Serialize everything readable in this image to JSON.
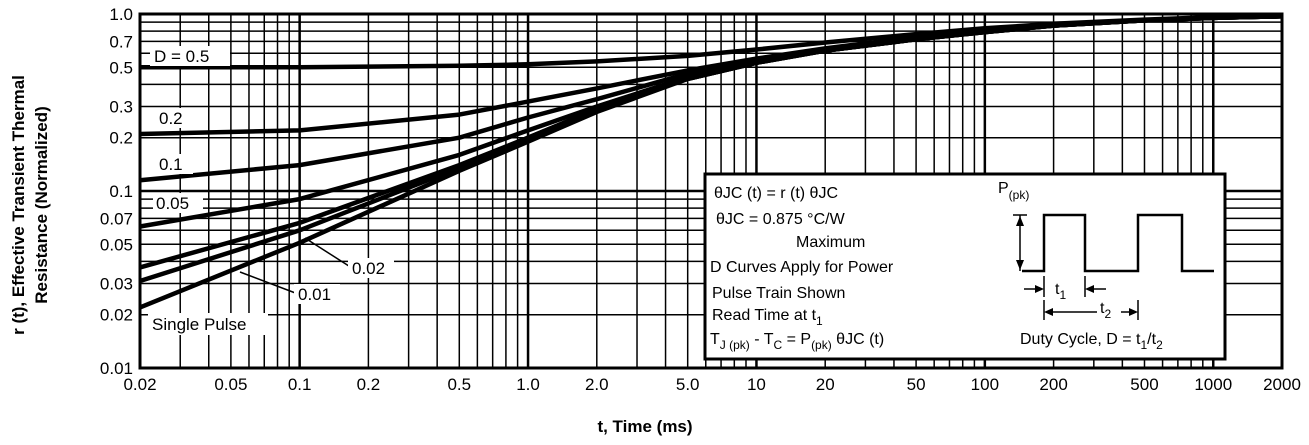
{
  "chart_data": {
    "type": "line",
    "title": "",
    "xlabel": "t, Time (ms)",
    "ylabel_line1": "r (t), Effective Transient Thermal",
    "ylabel_line2": "Resistance (Normalized)",
    "x_scale": "log",
    "y_scale": "log",
    "xlim": [
      0.02,
      2000
    ],
    "ylim": [
      0.01,
      1.0
    ],
    "grid": true,
    "x_ticks": [
      "0.02",
      "0.05",
      "0.1",
      "0.2",
      "0.5",
      "1.0",
      "2.0",
      "5.0",
      "10",
      "20",
      "50",
      "100",
      "200",
      "500",
      "1000",
      "2000"
    ],
    "x_tick_values": [
      0.02,
      0.05,
      0.1,
      0.2,
      0.5,
      1,
      2,
      5,
      10,
      20,
      50,
      100,
      200,
      500,
      1000,
      2000
    ],
    "y_ticks": [
      "1.0",
      "0.7",
      "0.5",
      "0.3",
      "0.2",
      "0.1",
      "0.07",
      "0.05",
      "0.03",
      "0.02",
      "0.01"
    ],
    "y_tick_values": [
      1.0,
      0.7,
      0.5,
      0.3,
      0.2,
      0.1,
      0.07,
      0.05,
      0.03,
      0.02,
      0.01
    ],
    "series": [
      {
        "name": "D = 0.5",
        "x": [
          0.02,
          0.1,
          0.5,
          1,
          2,
          5,
          10,
          20,
          50,
          100,
          200,
          500,
          1000,
          2000
        ],
        "y": [
          0.5,
          0.5,
          0.51,
          0.52,
          0.54,
          0.58,
          0.63,
          0.69,
          0.77,
          0.83,
          0.88,
          0.93,
          0.96,
          0.97
        ]
      },
      {
        "name": "0.2",
        "x": [
          0.02,
          0.1,
          0.5,
          1,
          2,
          5,
          10,
          20,
          50,
          100,
          200,
          500,
          1000,
          2000
        ],
        "y": [
          0.21,
          0.22,
          0.27,
          0.32,
          0.38,
          0.48,
          0.56,
          0.64,
          0.74,
          0.81,
          0.87,
          0.92,
          0.95,
          0.97
        ]
      },
      {
        "name": "0.1",
        "x": [
          0.02,
          0.1,
          0.5,
          1,
          2,
          5,
          10,
          20,
          50,
          100,
          200,
          500,
          1000,
          2000
        ],
        "y": [
          0.115,
          0.14,
          0.2,
          0.26,
          0.33,
          0.46,
          0.55,
          0.63,
          0.73,
          0.8,
          0.86,
          0.92,
          0.95,
          0.97
        ]
      },
      {
        "name": "0.05",
        "x": [
          0.02,
          0.1,
          0.5,
          1,
          2,
          5,
          10,
          20,
          50,
          100,
          200,
          500,
          1000,
          2000
        ],
        "y": [
          0.063,
          0.09,
          0.16,
          0.22,
          0.3,
          0.44,
          0.54,
          0.62,
          0.72,
          0.79,
          0.86,
          0.92,
          0.95,
          0.97
        ]
      },
      {
        "name": "0.02",
        "x": [
          0.02,
          0.1,
          0.5,
          1,
          2,
          5,
          10,
          20,
          50,
          100,
          200,
          500,
          1000,
          2000
        ],
        "y": [
          0.037,
          0.066,
          0.14,
          0.2,
          0.29,
          0.43,
          0.53,
          0.62,
          0.72,
          0.79,
          0.86,
          0.92,
          0.95,
          0.97
        ]
      },
      {
        "name": "0.01",
        "x": [
          0.02,
          0.1,
          0.5,
          1,
          2,
          5,
          10,
          20,
          50,
          100,
          200,
          500,
          1000,
          2000
        ],
        "y": [
          0.031,
          0.06,
          0.135,
          0.2,
          0.29,
          0.43,
          0.53,
          0.62,
          0.72,
          0.79,
          0.86,
          0.92,
          0.95,
          0.97
        ]
      },
      {
        "name": "Single Pulse",
        "x": [
          0.02,
          0.1,
          0.5,
          1,
          2,
          5,
          10,
          20,
          50,
          100,
          200,
          500,
          1000,
          2000
        ],
        "y": [
          0.022,
          0.051,
          0.13,
          0.19,
          0.28,
          0.43,
          0.53,
          0.62,
          0.72,
          0.79,
          0.86,
          0.92,
          0.95,
          0.97
        ]
      }
    ],
    "annotation": {
      "eq1": "θJC (t) = r (t) θJC",
      "eq2": "θJC = 0.875 °C/W",
      "eq2b": "Maximum",
      "eq3": "D Curves Apply for Power",
      "eq4": "Pulse Train Shown",
      "eq5_main": "Read Time at t",
      "eq5_sub": "1",
      "eq6_a": "T",
      "eq6_a_sub": "J (pk)",
      "eq6_b": " - T",
      "eq6_b_sub": "C",
      "eq6_c": " = P",
      "eq6_c_sub": "(pk)",
      "eq6_d": " θJC (t)",
      "ppk_main": "P",
      "ppk_sub": "(pk)",
      "t1_main": "t",
      "t1_sub": "1",
      "t2_main": "t",
      "t2_sub": "2",
      "duty_main": "Duty Cycle, D = t",
      "duty_sub1": "1",
      "duty_slash": "/t",
      "duty_sub2": "2"
    }
  }
}
